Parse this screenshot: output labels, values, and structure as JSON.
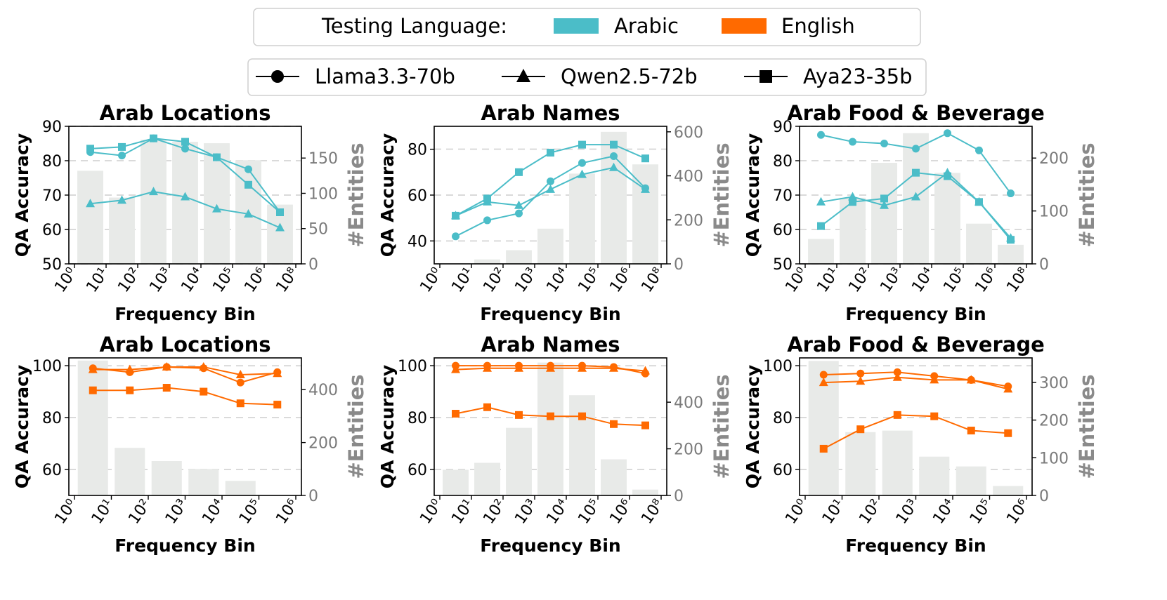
{
  "colors": {
    "arabic": "#4BBDC8",
    "english": "#FF6A00",
    "bar": "#E8EAE8",
    "grid": "#DADADA"
  },
  "legend_language": {
    "title": "Testing Language:",
    "items": [
      {
        "label": "Arabic",
        "color_key": "arabic"
      },
      {
        "label": "English",
        "color_key": "english"
      }
    ]
  },
  "legend_models": {
    "items": [
      {
        "label": "Llama3.3-70b",
        "marker": "circle"
      },
      {
        "label": "Qwen2.5-72b",
        "marker": "triangle"
      },
      {
        "label": "Aya23-35b",
        "marker": "square"
      }
    ]
  },
  "chart_data": [
    {
      "type": "line",
      "title": "Arab Locations",
      "language": "arabic",
      "xlabel": "Frequency Bin",
      "ylabel": "QA Accuracy",
      "ylabel_right": "#Entities",
      "x_ticks_exp": [
        0,
        1,
        2,
        3,
        4,
        5,
        6,
        8
      ],
      "x_positions": [
        0.5,
        1.5,
        2.5,
        3.5,
        4.5,
        5.5,
        6.5
      ],
      "ylim": [
        50,
        90
      ],
      "yticks": [
        50,
        60,
        70,
        80,
        90
      ],
      "right_ylim": [
        0,
        195
      ],
      "right_yticks": [
        0,
        50,
        100,
        150
      ],
      "bars": [
        132,
        94,
        176,
        173,
        171,
        147,
        84
      ],
      "series": [
        {
          "name": "Llama3.3-70b",
          "marker": "circle",
          "values": [
            82.5,
            81.5,
            86.5,
            83.5,
            81,
            77.5,
            65
          ]
        },
        {
          "name": "Qwen2.5-72b",
          "marker": "triangle",
          "values": [
            67.5,
            68.5,
            71,
            69.5,
            66,
            64.5,
            60.5
          ]
        },
        {
          "name": "Aya23-35b",
          "marker": "square",
          "values": [
            83.5,
            84,
            86.5,
            85.5,
            81,
            73,
            65
          ]
        }
      ]
    },
    {
      "type": "line",
      "title": "Arab Names",
      "language": "arabic",
      "xlabel": "Frequency Bin",
      "ylabel": "QA Accuracy",
      "ylabel_right": "#Entities",
      "x_ticks_exp": [
        0,
        1,
        2,
        3,
        4,
        5,
        6,
        8
      ],
      "x_positions": [
        0.5,
        1.5,
        2.5,
        3.5,
        4.5,
        5.5,
        6.5
      ],
      "ylim": [
        30,
        90
      ],
      "yticks": [
        40,
        60,
        80
      ],
      "right_ylim": [
        0,
        625
      ],
      "right_yticks": [
        0,
        200,
        400,
        600
      ],
      "bars": [
        0,
        20,
        62,
        160,
        410,
        600,
        452
      ],
      "series": [
        {
          "name": "Llama3.3-70b",
          "marker": "circle",
          "values": [
            42,
            49,
            52,
            66,
            74,
            77,
            63
          ]
        },
        {
          "name": "Qwen2.5-72b",
          "marker": "triangle",
          "values": [
            51,
            57,
            55.5,
            62.5,
            69,
            72,
            62.5
          ]
        },
        {
          "name": "Aya23-35b",
          "marker": "square",
          "values": [
            51,
            58.5,
            70,
            78.5,
            82,
            82,
            76
          ]
        }
      ]
    },
    {
      "type": "line",
      "title": "Arab Food & Beverage",
      "language": "arabic",
      "xlabel": "Frequency Bin",
      "ylabel": "QA Accuracy",
      "ylabel_right": "#Entities",
      "x_ticks_exp": [
        0,
        1,
        2,
        3,
        4,
        5,
        6,
        8
      ],
      "x_positions": [
        0.5,
        1.5,
        2.5,
        3.5,
        4.5,
        5.5,
        6.5
      ],
      "ylim": [
        50,
        90
      ],
      "yticks": [
        50,
        60,
        70,
        80,
        90
      ],
      "right_ylim": [
        0,
        260
      ],
      "right_yticks": [
        0,
        100,
        200
      ],
      "bars": [
        47,
        125,
        191,
        247,
        172,
        76,
        36
      ],
      "series": [
        {
          "name": "Llama3.3-70b",
          "marker": "circle",
          "values": [
            87.5,
            85.5,
            85,
            83.5,
            88,
            83,
            70.5
          ]
        },
        {
          "name": "Qwen2.5-72b",
          "marker": "triangle",
          "values": [
            68,
            69.5,
            67,
            69.5,
            76.5,
            68,
            57.5
          ]
        },
        {
          "name": "Aya23-35b",
          "marker": "square",
          "values": [
            61,
            68,
            69,
            76.5,
            75.5,
            68,
            57
          ]
        }
      ]
    },
    {
      "type": "line",
      "title": "Arab Locations",
      "language": "english",
      "xlabel": "Frequency Bin",
      "ylabel": "QA Accuracy",
      "ylabel_right": "#Entities",
      "x_ticks_exp": [
        0,
        1,
        2,
        3,
        4,
        5,
        6
      ],
      "x_positions": [
        0.5,
        1.5,
        2.5,
        3.5,
        4.5,
        5.5
      ],
      "ylim": [
        50,
        103
      ],
      "yticks": [
        60,
        80,
        100
      ],
      "right_ylim": [
        0,
        520
      ],
      "right_yticks": [
        0,
        200,
        400
      ],
      "bars": [
        510,
        180,
        130,
        100,
        55,
        0
      ],
      "series": [
        {
          "name": "Llama3.3-70b",
          "marker": "circle",
          "values": [
            99,
            97.5,
            99.5,
            99,
            93.5,
            97.5
          ]
        },
        {
          "name": "Qwen2.5-72b",
          "marker": "triangle",
          "values": [
            98.5,
            98.5,
            99.5,
            99.5,
            96.5,
            97
          ]
        },
        {
          "name": "Aya23-35b",
          "marker": "square",
          "values": [
            90.5,
            90.5,
            91.5,
            90,
            85.5,
            85
          ]
        }
      ]
    },
    {
      "type": "line",
      "title": "Arab Names",
      "language": "english",
      "xlabel": "Frequency Bin",
      "ylabel": "QA Accuracy",
      "ylabel_right": "#Entities",
      "x_ticks_exp": [
        0,
        1,
        2,
        3,
        4,
        5,
        6,
        8
      ],
      "x_positions": [
        0.5,
        1.5,
        2.5,
        3.5,
        4.5,
        5.5,
        6.5
      ],
      "ylim": [
        50,
        103
      ],
      "yticks": [
        60,
        80,
        100
      ],
      "right_ylim": [
        0,
        590
      ],
      "right_yticks": [
        0,
        200,
        400
      ],
      "bars": [
        110,
        140,
        290,
        570,
        430,
        155,
        25
      ],
      "series": [
        {
          "name": "Llama3.3-70b",
          "marker": "circle",
          "values": [
            100,
            100,
            100,
            100,
            100,
            99.5,
            97
          ]
        },
        {
          "name": "Qwen2.5-72b",
          "marker": "triangle",
          "values": [
            98.5,
            99,
            99,
            99,
            99,
            99,
            98
          ]
        },
        {
          "name": "Aya23-35b",
          "marker": "square",
          "values": [
            81.5,
            84,
            81,
            80.5,
            80.5,
            77.5,
            77
          ]
        }
      ]
    },
    {
      "type": "line",
      "title": "Arab Food & Beverage",
      "language": "english",
      "xlabel": "Frequency Bin",
      "ylabel": "QA Accuracy",
      "ylabel_right": "#Entities",
      "x_ticks_exp": [
        0,
        1,
        2,
        3,
        4,
        5,
        6
      ],
      "x_positions": [
        0.5,
        1.5,
        2.5,
        3.5,
        4.5,
        5.5
      ],
      "ylim": [
        50,
        103
      ],
      "yticks": [
        60,
        80,
        100
      ],
      "right_ylim": [
        0,
        365
      ],
      "right_yticks": [
        0,
        100,
        200,
        300
      ],
      "bars": [
        357,
        168,
        172,
        103,
        77,
        25
      ],
      "series": [
        {
          "name": "Llama3.3-70b",
          "marker": "circle",
          "values": [
            96.5,
            97,
            97.5,
            96,
            94.5,
            92
          ]
        },
        {
          "name": "Qwen2.5-72b",
          "marker": "triangle",
          "values": [
            93.5,
            94,
            95.5,
            94.5,
            94.5,
            91
          ]
        },
        {
          "name": "Aya23-35b",
          "marker": "square",
          "values": [
            68,
            75.5,
            81,
            80.5,
            75,
            74
          ]
        }
      ]
    }
  ]
}
